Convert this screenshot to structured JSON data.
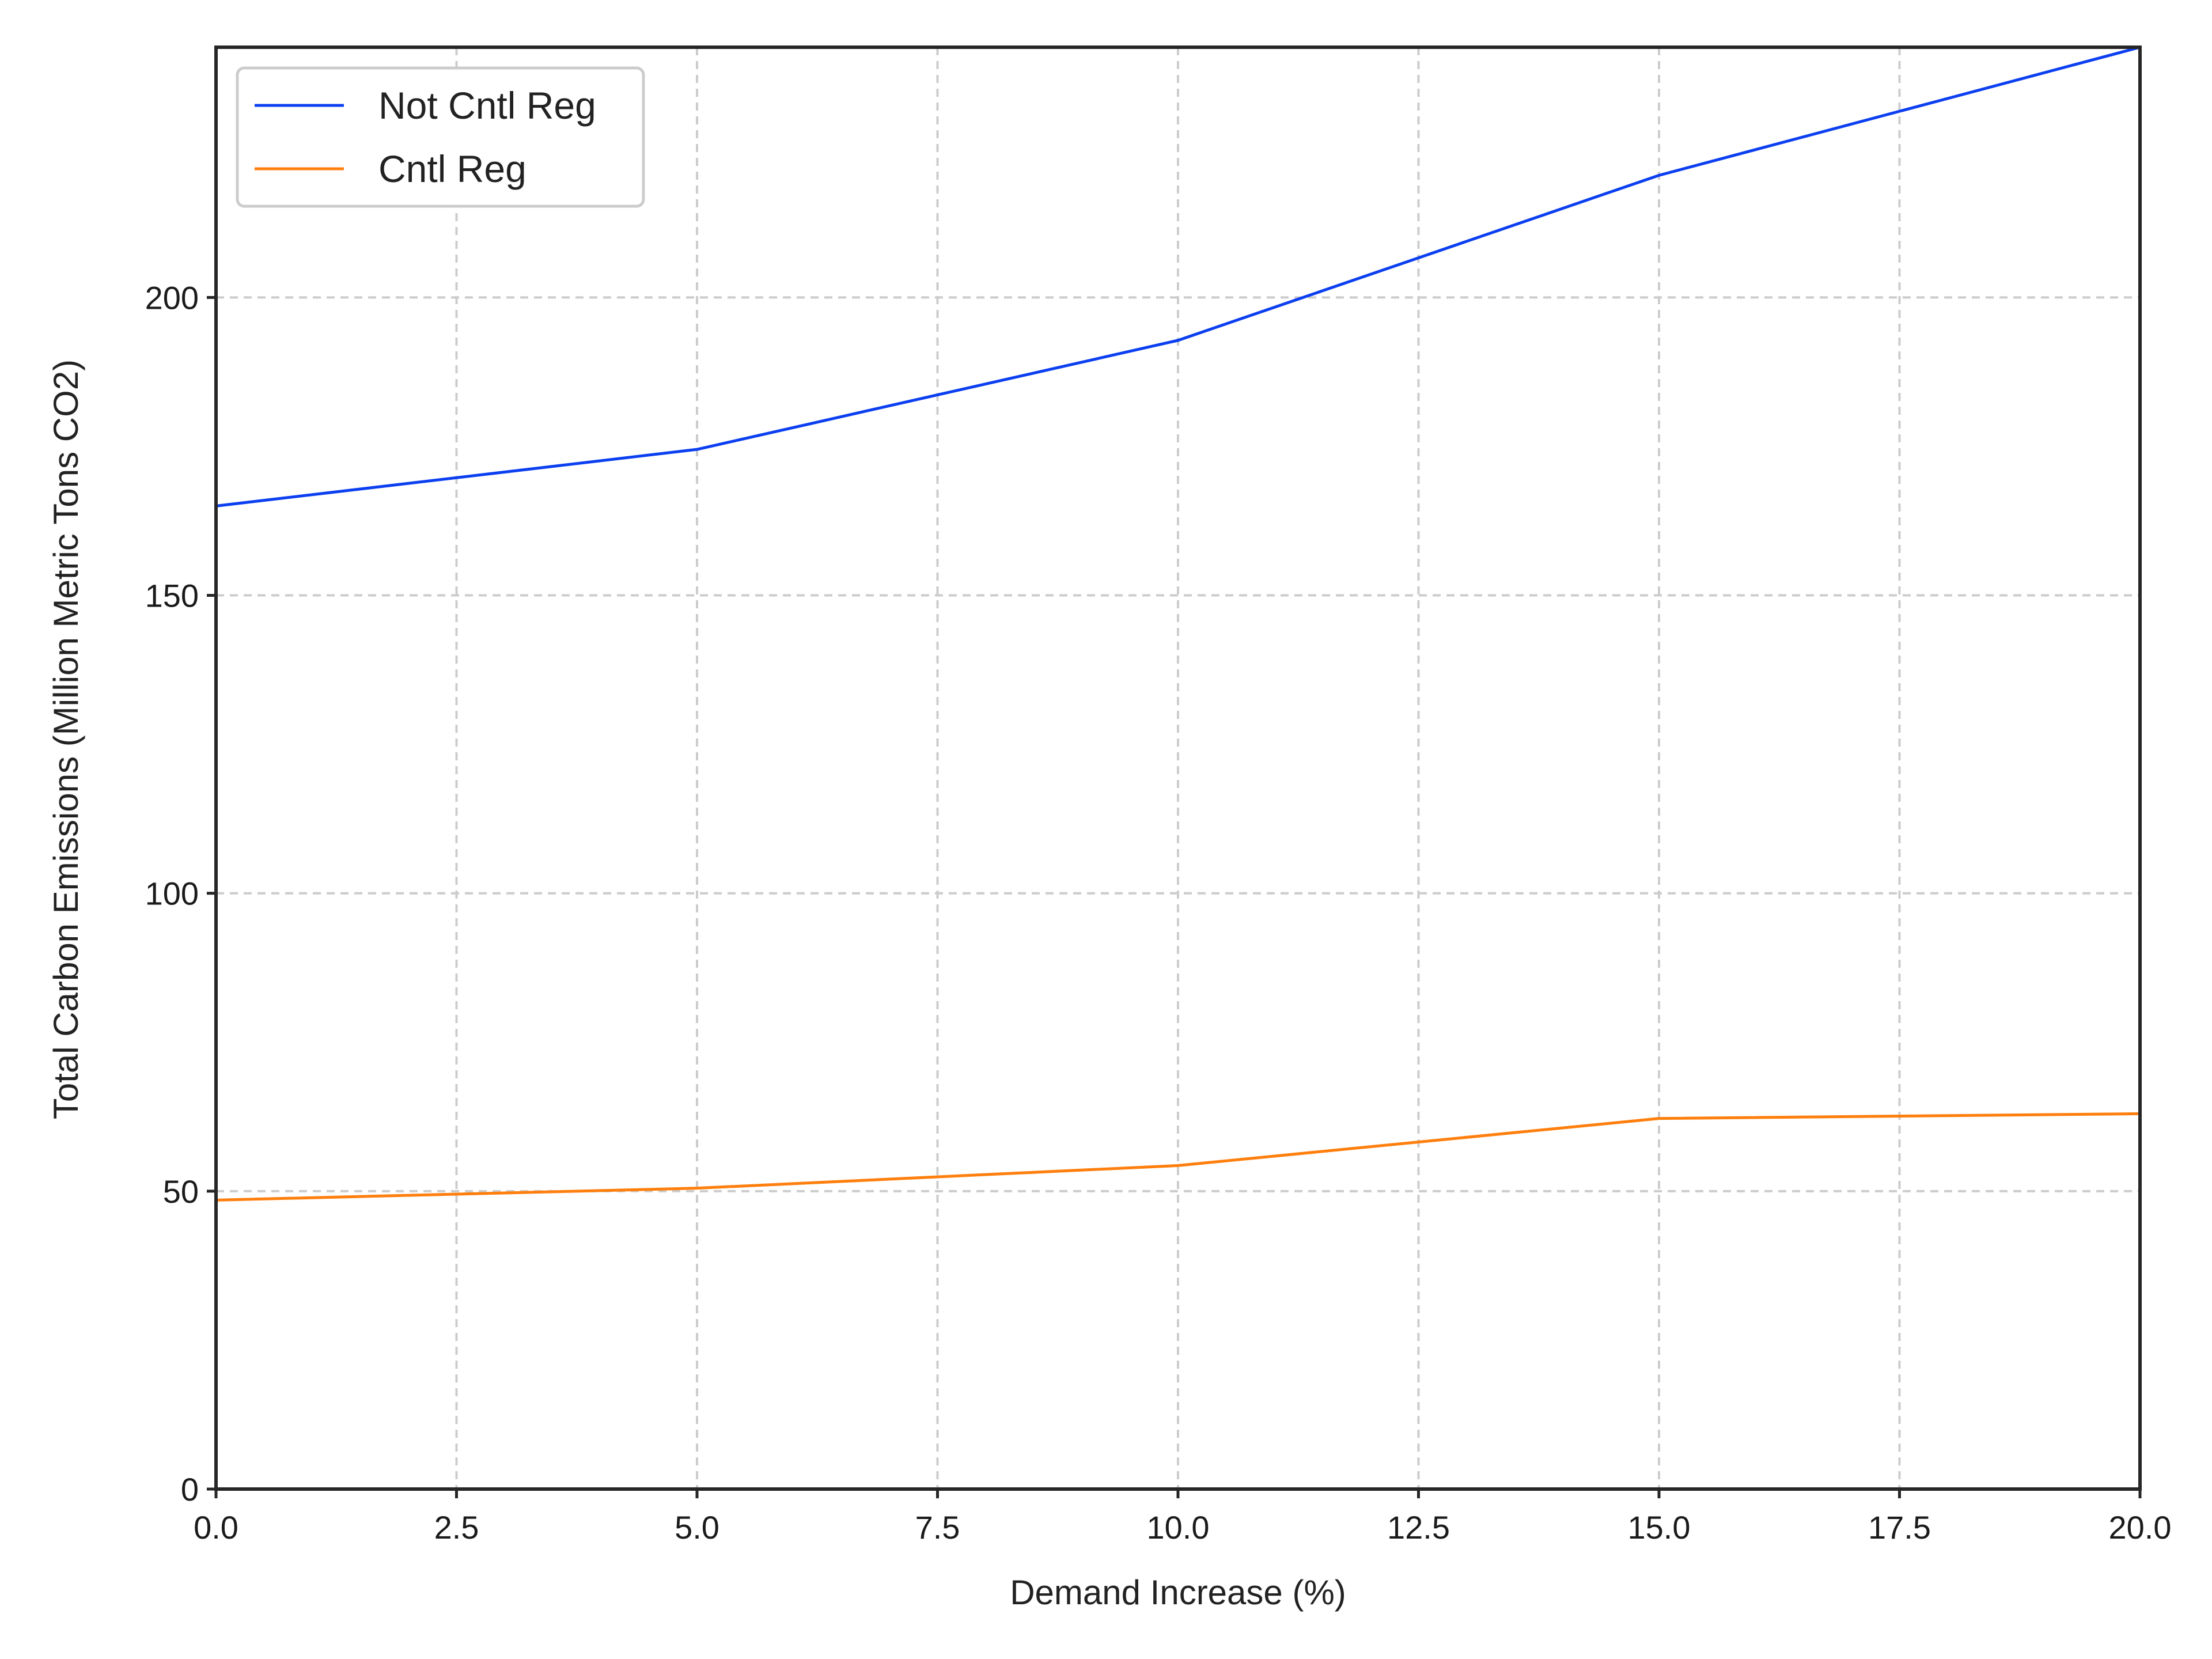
{
  "chart_data": {
    "type": "line",
    "title": "",
    "xlabel": "Demand Increase (%)",
    "ylabel": "Total Carbon Emissions (Million Metric Tons CO2)",
    "xlim": [
      0,
      20
    ],
    "ylim": [
      0,
      242
    ],
    "x_ticks": [
      "0.0",
      "2.5",
      "5.0",
      "7.5",
      "10.0",
      "12.5",
      "15.0",
      "17.5",
      "20.0"
    ],
    "y_ticks": [
      "0",
      "50",
      "100",
      "150",
      "200"
    ],
    "grid": true,
    "legend_position": "top-left",
    "x": [
      0,
      5,
      10,
      15,
      20
    ],
    "series": [
      {
        "name": "Not Cntl Reg",
        "color": "#0b3ff0",
        "values": [
          165.0,
          174.5,
          192.8,
          220.5,
          242.0
        ]
      },
      {
        "name": "Cntl Reg",
        "color": "#ff7f0e",
        "values": [
          48.5,
          50.5,
          54.3,
          62.2,
          63.0
        ]
      }
    ]
  }
}
